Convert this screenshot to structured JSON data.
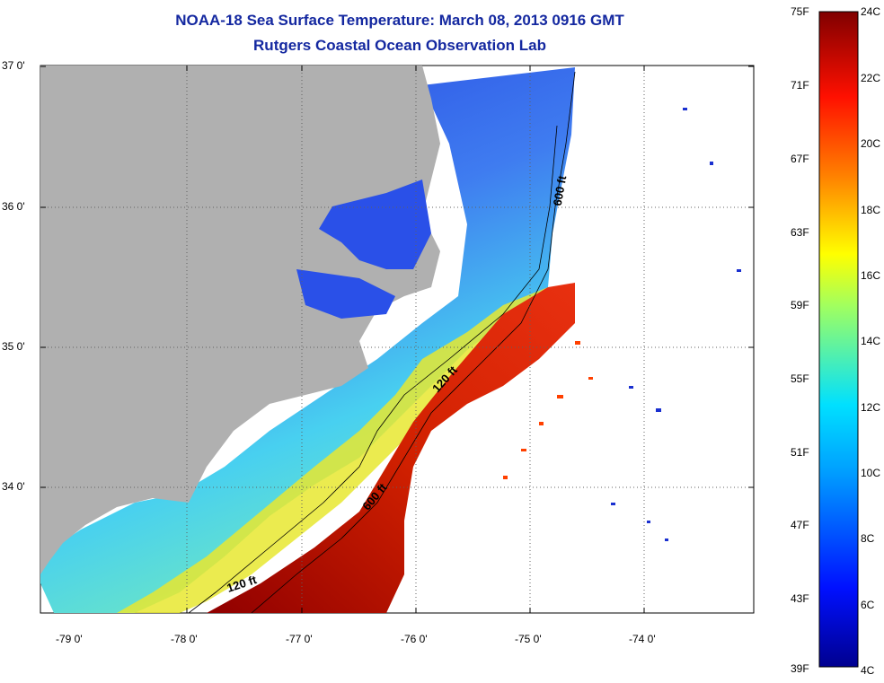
{
  "title": {
    "line1": "NOAA-18 Sea Surface Temperature:  March 08, 2013 0916 GMT",
    "line2": "Rutgers Coastal Ocean Observation Lab"
  },
  "map": {
    "lat_labels": [
      "37 0'",
      "36 0'",
      "35 0'",
      "34 0'"
    ],
    "lon_labels": [
      "-79 0'",
      "-78 0'",
      "-77 0'",
      "-76 0'",
      "-75 0'",
      "-74 0'"
    ],
    "contour_labels": [
      "600 ft",
      "120 ft",
      "600 ft",
      "120 ft"
    ],
    "colors": {
      "land": "#b0b0b0",
      "ocean_cold": "#1f3fd8",
      "ocean_warm": "#c40000"
    }
  },
  "colorbar": {
    "fahrenheit_labels": [
      "75F",
      "71F",
      "67F",
      "63F",
      "59F",
      "55F",
      "51F",
      "47F",
      "43F",
      "39F"
    ],
    "celsius_labels": [
      "24C",
      "22C",
      "20C",
      "18C",
      "16C",
      "14C",
      "12C",
      "10C",
      "8C",
      "6C",
      "4C"
    ]
  }
}
